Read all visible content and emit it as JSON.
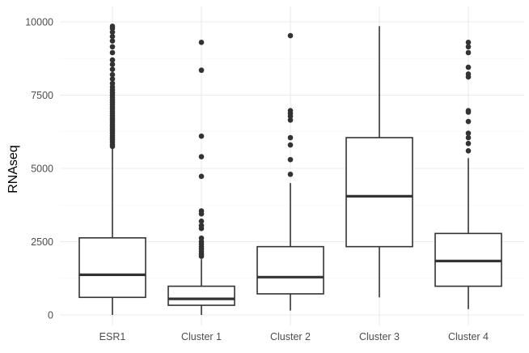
{
  "chart_data": {
    "type": "boxplot",
    "title": "",
    "xlabel": "",
    "ylabel": "RNAseq",
    "ylim": [
      0,
      10000
    ],
    "yticks": [
      0,
      2500,
      5000,
      7500,
      10000
    ],
    "ytick_labels": [
      "0",
      "2500",
      "5000",
      "7500",
      "10000"
    ],
    "grid": true,
    "legend": "none",
    "colors": {
      "box_stroke": "#333333",
      "box_fill": "#ffffff",
      "grid": "#ebebeb",
      "outlier": "#333333"
    },
    "categories": [
      "ESR1",
      "Cluster 1",
      "Cluster 2",
      "Cluster 3",
      "Cluster 4"
    ],
    "boxes": [
      {
        "category": "ESR1",
        "whisker_low": 0,
        "q1": 600,
        "median": 1370,
        "q3": 2630,
        "whisker_high": 5680,
        "outliers": [
          5750,
          5820,
          5900,
          5980,
          6050,
          6120,
          6200,
          6280,
          6350,
          6430,
          6500,
          6580,
          6650,
          6720,
          6800,
          6880,
          6950,
          7030,
          7100,
          7180,
          7250,
          7330,
          7420,
          7500,
          7580,
          7680,
          7780,
          7900,
          8050,
          8200,
          8380,
          8550,
          8700,
          8950,
          9150,
          9350,
          9500,
          9650,
          9780,
          9850
        ]
      },
      {
        "category": "Cluster 1",
        "whisker_low": 0,
        "q1": 330,
        "median": 550,
        "q3": 980,
        "whisker_high": 1900,
        "outliers": [
          2000,
          2080,
          2160,
          2250,
          2330,
          2420,
          2500,
          2620,
          2950,
          3050,
          3200,
          3450,
          3550,
          4730,
          5400,
          6100,
          8350,
          9300
        ]
      },
      {
        "category": "Cluster 2",
        "whisker_low": 150,
        "q1": 720,
        "median": 1290,
        "q3": 2330,
        "whisker_high": 4500,
        "outliers": [
          4800,
          5300,
          5800,
          6050,
          6650,
          6780,
          6880,
          6970,
          9530
        ]
      },
      {
        "category": "Cluster 3",
        "whisker_low": 600,
        "q1": 2330,
        "median": 4050,
        "q3": 6050,
        "whisker_high": 9850,
        "outliers": []
      },
      {
        "category": "Cluster 4",
        "whisker_low": 200,
        "q1": 980,
        "median": 1840,
        "q3": 2780,
        "whisker_high": 5350,
        "outliers": [
          5600,
          5850,
          6050,
          6200,
          6600,
          6920,
          6970,
          8120,
          8220,
          8450,
          8950,
          9150,
          9300
        ]
      }
    ]
  }
}
